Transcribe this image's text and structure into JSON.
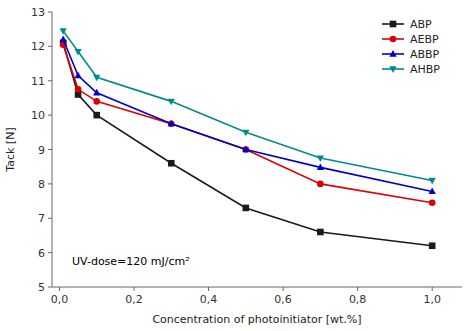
{
  "chart_data": {
    "type": "line",
    "x": [
      0.01,
      0.05,
      0.1,
      0.3,
      0.5,
      0.7,
      1.0
    ],
    "series": [
      {
        "name": "ABP",
        "color": "#1a1a1a",
        "marker": "square",
        "line_style": "solid",
        "values": [
          12.1,
          10.6,
          10.0,
          8.6,
          7.3,
          6.6,
          6.2
        ]
      },
      {
        "name": "AEBP",
        "color": "#dd0000",
        "marker": "circle",
        "line_style": "solid",
        "values": [
          12.05,
          10.75,
          10.4,
          9.75,
          9.0,
          8.0,
          7.45
        ]
      },
      {
        "name": "ABBP",
        "color": "#0000cc",
        "marker": "triangle-up",
        "line_style": "solid",
        "values": [
          12.2,
          11.15,
          10.65,
          9.75,
          9.0,
          8.48,
          7.78
        ]
      },
      {
        "name": "AHBP",
        "color": "#008b8b",
        "marker": "triangle-down",
        "line_style": "solid",
        "values": [
          12.45,
          11.85,
          11.1,
          10.4,
          9.5,
          8.75,
          8.1
        ]
      }
    ],
    "x_label": "Concentration of photoinitiator [wt.%]",
    "y_label": "Tack [N]",
    "annotation": "UV-dose=120 mJ/cm²",
    "xlim": [
      -0.02,
      1.08
    ],
    "ylim": [
      5,
      13
    ],
    "xticks": [
      {
        "value": 0.0,
        "label": "0,0"
      },
      {
        "value": 0.2,
        "label": "0,2"
      },
      {
        "value": 0.4,
        "label": "0,4"
      },
      {
        "value": 0.6,
        "label": "0,6"
      },
      {
        "value": 0.8,
        "label": "0,8"
      },
      {
        "value": 1.0,
        "label": "1,0"
      }
    ],
    "yticks": [
      5,
      6,
      7,
      8,
      9,
      10,
      11,
      12,
      13
    ],
    "grid": false,
    "legend": "upper right"
  }
}
